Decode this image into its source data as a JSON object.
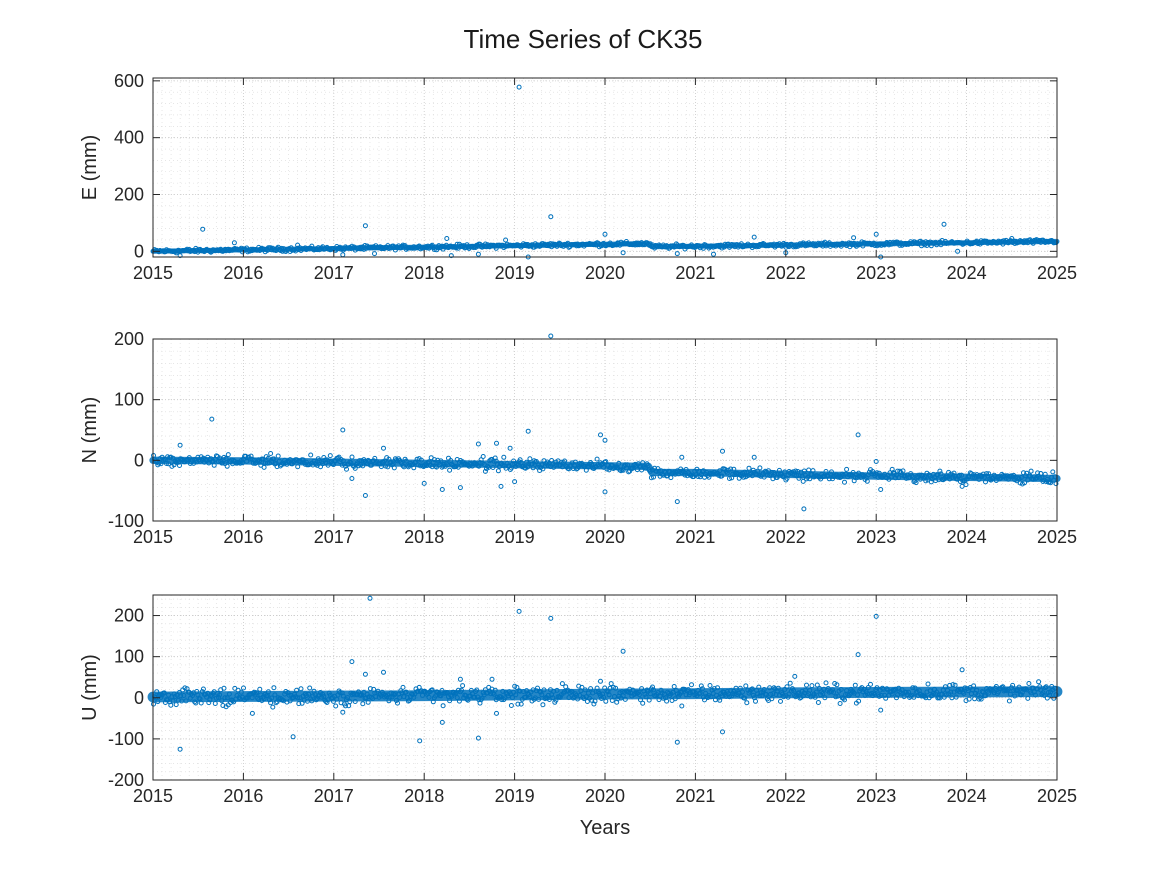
{
  "figure": {
    "title": "Time Series of CK35",
    "marker_color": "#0072BD"
  },
  "chart_data": [
    {
      "type": "scatter",
      "ylabel": "E (mm)",
      "xlabel": "",
      "xlim": [
        2015,
        2025
      ],
      "ylim": [
        -20,
        610
      ],
      "xticks": [
        2015,
        2016,
        2017,
        2018,
        2019,
        2020,
        2021,
        2022,
        2023,
        2024,
        2025
      ],
      "xtick_labels": [
        "2015",
        "2016",
        "2017",
        "2018",
        "2019",
        "2020",
        "2021",
        "2022",
        "2023",
        "2024",
        "2025"
      ],
      "yticks": [
        0,
        200,
        400,
        600
      ],
      "ytick_labels": [
        "0",
        "200",
        "400",
        "600"
      ],
      "grid": true,
      "trend": [
        [
          2015.0,
          0
        ],
        [
          2016.0,
          5
        ],
        [
          2017.0,
          10
        ],
        [
          2018.0,
          15
        ],
        [
          2019.0,
          20
        ],
        [
          2020.0,
          25
        ],
        [
          2020.48,
          27
        ],
        [
          2020.52,
          16
        ],
        [
          2021.0,
          18
        ],
        [
          2022.0,
          22
        ],
        [
          2023.0,
          26
        ],
        [
          2024.0,
          30
        ],
        [
          2025.0,
          35
        ]
      ],
      "scatter_spread": 8,
      "outliers": [
        [
          2015.3,
          -15
        ],
        [
          2015.55,
          78
        ],
        [
          2015.9,
          30
        ],
        [
          2016.6,
          22
        ],
        [
          2017.1,
          -12
        ],
        [
          2017.35,
          90
        ],
        [
          2017.45,
          -8
        ],
        [
          2018.25,
          45
        ],
        [
          2018.3,
          -15
        ],
        [
          2018.9,
          40
        ],
        [
          2018.6,
          -10
        ],
        [
          2019.05,
          578
        ],
        [
          2019.15,
          -20
        ],
        [
          2019.4,
          122
        ],
        [
          2020.0,
          60
        ],
        [
          2020.2,
          -5
        ],
        [
          2020.8,
          -8
        ],
        [
          2021.2,
          -10
        ],
        [
          2021.65,
          50
        ],
        [
          2022.0,
          -5
        ],
        [
          2022.75,
          48
        ],
        [
          2023.0,
          60
        ],
        [
          2023.05,
          -20
        ],
        [
          2023.75,
          95
        ],
        [
          2023.9,
          0
        ],
        [
          2024.5,
          45
        ]
      ]
    },
    {
      "type": "scatter",
      "ylabel": "N (mm)",
      "xlabel": "",
      "xlim": [
        2015,
        2025
      ],
      "ylim": [
        -100,
        200
      ],
      "xticks": [
        2015,
        2016,
        2017,
        2018,
        2019,
        2020,
        2021,
        2022,
        2023,
        2024,
        2025
      ],
      "xtick_labels": [
        "2015",
        "2016",
        "2017",
        "2018",
        "2019",
        "2020",
        "2021",
        "2022",
        "2023",
        "2024",
        "2025"
      ],
      "yticks": [
        -100,
        0,
        100,
        200
      ],
      "ytick_labels": [
        "-100",
        "0",
        "100",
        "200"
      ],
      "grid": true,
      "trend": [
        [
          2015.0,
          0
        ],
        [
          2016.0,
          -1
        ],
        [
          2017.0,
          -3
        ],
        [
          2018.0,
          -5
        ],
        [
          2019.0,
          -7
        ],
        [
          2020.0,
          -9
        ],
        [
          2020.48,
          -10
        ],
        [
          2020.52,
          -20
        ],
        [
          2021.0,
          -20
        ],
        [
          2022.0,
          -23
        ],
        [
          2023.0,
          -26
        ],
        [
          2024.0,
          -28
        ],
        [
          2025.0,
          -30
        ]
      ],
      "scatter_spread": 10,
      "outliers": [
        [
          2015.3,
          25
        ],
        [
          2015.65,
          68
        ],
        [
          2017.1,
          50
        ],
        [
          2017.2,
          -30
        ],
        [
          2017.35,
          -58
        ],
        [
          2017.55,
          20
        ],
        [
          2018.0,
          -38
        ],
        [
          2018.2,
          -48
        ],
        [
          2018.4,
          -45
        ],
        [
          2018.6,
          27
        ],
        [
          2018.8,
          28
        ],
        [
          2018.85,
          -43
        ],
        [
          2018.95,
          20
        ],
        [
          2019.0,
          -35
        ],
        [
          2019.15,
          48
        ],
        [
          2019.4,
          205
        ],
        [
          2019.95,
          42
        ],
        [
          2020.0,
          33
        ],
        [
          2020.0,
          -52
        ],
        [
          2020.8,
          -68
        ],
        [
          2020.85,
          5
        ],
        [
          2021.3,
          15
        ],
        [
          2021.65,
          5
        ],
        [
          2022.2,
          -80
        ],
        [
          2022.8,
          42
        ],
        [
          2023.0,
          -2
        ],
        [
          2023.05,
          -48
        ],
        [
          2023.95,
          -43
        ]
      ]
    },
    {
      "type": "scatter",
      "ylabel": "U (mm)",
      "xlabel": "Years",
      "xlim": [
        2015,
        2025
      ],
      "ylim": [
        -200,
        250
      ],
      "xticks": [
        2015,
        2016,
        2017,
        2018,
        2019,
        2020,
        2021,
        2022,
        2023,
        2024,
        2025
      ],
      "xtick_labels": [
        "2015",
        "2016",
        "2017",
        "2018",
        "2019",
        "2020",
        "2021",
        "2022",
        "2023",
        "2024",
        "2025"
      ],
      "yticks": [
        -200,
        -100,
        0,
        100,
        200
      ],
      "ytick_labels": [
        "-200",
        "-100",
        "0",
        "100",
        "200"
      ],
      "grid": true,
      "trend": [
        [
          2015.0,
          2
        ],
        [
          2016.0,
          3
        ],
        [
          2017.0,
          4
        ],
        [
          2018.0,
          5
        ],
        [
          2019.0,
          7
        ],
        [
          2020.0,
          9
        ],
        [
          2021.0,
          10
        ],
        [
          2022.0,
          12
        ],
        [
          2023.0,
          13
        ],
        [
          2024.0,
          14
        ],
        [
          2025.0,
          15
        ]
      ],
      "scatter_spread": 22,
      "outliers": [
        [
          2015.3,
          -125
        ],
        [
          2016.1,
          -38
        ],
        [
          2016.55,
          -95
        ],
        [
          2017.1,
          -35
        ],
        [
          2017.2,
          88
        ],
        [
          2017.35,
          57
        ],
        [
          2017.4,
          242
        ],
        [
          2017.55,
          62
        ],
        [
          2017.95,
          -105
        ],
        [
          2018.2,
          -60
        ],
        [
          2018.4,
          45
        ],
        [
          2018.6,
          -98
        ],
        [
          2018.75,
          45
        ],
        [
          2018.8,
          -38
        ],
        [
          2019.05,
          210
        ],
        [
          2019.4,
          193
        ],
        [
          2019.95,
          40
        ],
        [
          2020.2,
          113
        ],
        [
          2020.8,
          -108
        ],
        [
          2020.85,
          -20
        ],
        [
          2021.3,
          -83
        ],
        [
          2022.1,
          52
        ],
        [
          2022.8,
          105
        ],
        [
          2023.0,
          198
        ],
        [
          2023.05,
          -30
        ],
        [
          2023.95,
          68
        ]
      ]
    }
  ]
}
